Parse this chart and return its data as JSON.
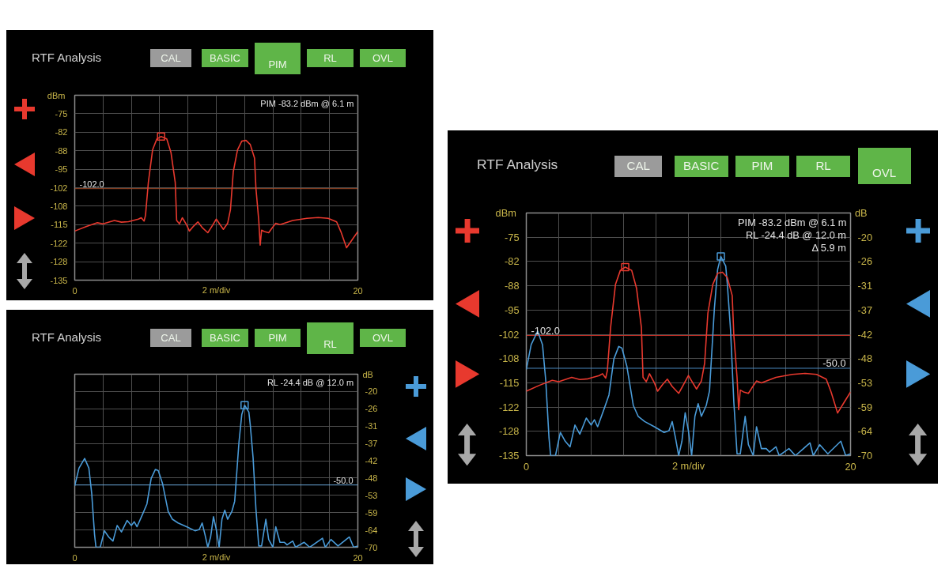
{
  "chart_data": [
    {
      "type": "line",
      "title": "RTF Analysis",
      "xlabel": "2 m/div",
      "ylabel": "dBm",
      "xlim": [
        0,
        20
      ],
      "xticks": [
        0,
        {
          "value": 2,
          "label": null
        },
        {
          "value": 4,
          "label": null
        },
        {
          "value": 6,
          "label": null
        },
        {
          "value": 8,
          "label": null
        },
        {
          "value": 10,
          "label": null
        },
        {
          "value": 12,
          "label": null
        },
        {
          "value": 14,
          "label": null
        },
        {
          "value": 16,
          "label": null
        },
        {
          "value": 18,
          "label": null
        },
        20
      ],
      "ylim": [
        -135,
        -68.33
      ],
      "yticks": [
        -135,
        {
          "value": -128.33,
          "label": "-128"
        },
        {
          "value": -121.67,
          "label": "-122"
        },
        -115,
        {
          "value": -108.33,
          "label": "-108"
        },
        {
          "value": -101.67,
          "label": "-102"
        },
        -95,
        {
          "value": -88.33,
          "label": "-88"
        },
        {
          "value": -81.67,
          "label": "-82"
        },
        -75
      ],
      "grid": true,
      "ref_lines": [
        {
          "axis": "y",
          "value": -102,
          "label": "-102.0",
          "color": "#9c4a2a"
        }
      ],
      "annotations": [
        "PIM -83.2 dBm @ 6.1 m",
        "CAL",
        "BASIC",
        "PIM",
        "RL",
        "OVL"
      ],
      "series": [
        {
          "color": "#e8392e",
          "x": [
            0,
            0.8,
            1.6,
            2.0,
            2.8,
            3.3,
            3.8,
            4.5,
            4.7,
            4.9,
            5.0,
            5.2,
            5.5,
            5.8,
            6.1,
            6.5,
            6.8,
            7.1,
            7.2,
            7.4,
            7.6,
            7.9,
            8.1,
            8.4,
            8.7,
            9.0,
            9.4,
            9.7,
            10.0,
            10.2,
            10.5,
            10.8,
            11.0,
            11.2,
            11.5,
            11.8,
            12.1,
            12.4,
            12.7,
            12.8,
            13.0,
            13.1,
            13.2,
            13.4,
            13.7,
            13.9,
            14.2,
            14.5,
            15.4,
            16.4,
            17.2,
            17.9,
            18.5,
            18.8,
            19.2,
            19.6,
            20
          ],
          "values": [
            -117.3,
            -115.7,
            -114.3,
            -114.7,
            -113.5,
            -114.1,
            -113.9,
            -113.0,
            -112.5,
            -113.7,
            -111.6,
            -99.8,
            -88.0,
            -84.1,
            -83.2,
            -84.1,
            -89.0,
            -99.8,
            -113.5,
            -114.7,
            -112.5,
            -115.0,
            -117.3,
            -115.5,
            -114.0,
            -116.0,
            -117.9,
            -115.5,
            -113.0,
            -114.5,
            -116.7,
            -114.5,
            -109.6,
            -95.9,
            -88.0,
            -84.9,
            -84.6,
            -86.1,
            -91.0,
            -101.8,
            -113.5,
            -122.4,
            -117.0,
            -117.5,
            -117.9,
            -116.5,
            -114.5,
            -115.0,
            -113.5,
            -112.7,
            -112.4,
            -112.7,
            -114.0,
            -117.5,
            -123.3,
            -120.4,
            -117.5
          ]
        },
        {
          "type": "scatter",
          "marker": "square",
          "color": "#e8392e",
          "x": [
            6.1
          ],
          "values": [
            -83.2
          ]
        }
      ]
    },
    {
      "type": "line",
      "title": "RTF Analysis",
      "xlabel": "2 m/div",
      "ylabel": "dBm",
      "y2label": "dB",
      "xlim": [
        0,
        20
      ],
      "xticks": [
        0,
        {
          "value": 2,
          "label": null
        },
        {
          "value": 4,
          "label": null
        },
        {
          "value": 6,
          "label": null
        },
        {
          "value": 8,
          "label": null
        },
        {
          "value": 10,
          "label": null
        },
        {
          "value": 12,
          "label": null
        },
        {
          "value": 14,
          "label": null
        },
        {
          "value": 16,
          "label": null
        },
        {
          "value": 18,
          "label": null
        },
        20
      ],
      "ylim": [
        -135,
        -68.33
      ],
      "yticks": [
        -135,
        {
          "value": -128.33,
          "label": "-128"
        },
        {
          "value": -121.67,
          "label": "-122"
        },
        -115,
        {
          "value": -108.33,
          "label": "-108"
        },
        {
          "value": -101.67,
          "label": "-102"
        },
        -95,
        {
          "value": -88.33,
          "label": "-88"
        },
        {
          "value": -81.67,
          "label": "-82"
        },
        -75
      ],
      "y2lim": [
        -70,
        -14.44
      ],
      "y2ticks": [
        -70,
        {
          "value": -64.44,
          "label": "-64"
        },
        {
          "value": -58.89,
          "label": "-59"
        },
        {
          "value": -53.33,
          "label": "-53"
        },
        {
          "value": -47.78,
          "label": "-48"
        },
        {
          "value": -42.22,
          "label": "-42"
        },
        {
          "value": -36.67,
          "label": "-37"
        },
        {
          "value": -31.11,
          "label": "-31"
        },
        {
          "value": -25.56,
          "label": "-26"
        },
        -20
      ],
      "grid": true,
      "ref_lines": [
        {
          "axis": "y",
          "value": -102,
          "label": "-102.0",
          "color": "#c83228"
        },
        {
          "axis": "y2",
          "value": -50,
          "label": "-50.0",
          "color": "#4a88c0"
        }
      ],
      "annotations": [
        "PIM -83.2 dBm @ 6.1 m",
        "RL -24.4 dB @ 12.0 m",
        "Δ 5.9 m",
        "CAL",
        "BASIC",
        "PIM",
        "RL",
        "OVL"
      ],
      "series": [
        {
          "color": "#4a9bd8",
          "axis": "y2",
          "x": [
            0,
            0.3,
            0.7,
            1.0,
            1.2,
            1.4,
            1.5,
            1.8,
            2.1,
            2.4,
            2.7,
            3.0,
            3.3,
            3.7,
            4.0,
            4.2,
            4.4,
            4.8,
            5.1,
            5.4,
            5.7,
            5.9,
            6.2,
            6.6,
            6.9,
            7.3,
            7.9,
            8.5,
            8.8,
            9.0,
            9.2,
            9.4,
            9.6,
            9.8,
            10.0,
            10.2,
            10.4,
            10.6,
            10.8,
            11.1,
            11.3,
            11.6,
            11.8,
            12.0,
            12.3,
            12.4,
            12.6,
            12.8,
            13.0,
            13.2,
            13.5,
            13.7,
            14.0,
            14.2,
            14.5,
            14.8,
            15.0,
            15.4,
            15.6,
            16.2,
            16.6,
            17.5,
            17.7,
            18.1,
            18.6,
            19.4,
            19.7,
            20
          ],
          "values": [
            -50.3,
            -44.6,
            -41.5,
            -44.6,
            -52.8,
            -65.9,
            -70,
            -70,
            -64.7,
            -66.7,
            -68.0,
            -63.0,
            -65.1,
            -61.4,
            -63.0,
            -61.8,
            -63.4,
            -59.3,
            -56.1,
            -47.9,
            -45.0,
            -45.4,
            -49.5,
            -58.5,
            -61.0,
            -62.2,
            -63.4,
            -64.7,
            -64.3,
            -62.2,
            -65.9,
            -70,
            -66.7,
            -60.2,
            -64.3,
            -70,
            -61.0,
            -58.1,
            -61.0,
            -58.5,
            -55.2,
            -36.4,
            -27.4,
            -24.4,
            -26.6,
            -30.7,
            -41.3,
            -57.7,
            -69.6,
            -69.6,
            -61.0,
            -67.5,
            -70,
            -63.4,
            -68.4,
            -68.4,
            -69.2,
            -68.0,
            -70,
            -68.4,
            -70,
            -67.1,
            -70,
            -67.5,
            -69.6,
            -66.7,
            -70,
            -69.6
          ]
        },
        {
          "color": "#e8392e",
          "axis": "y",
          "x": [
            0,
            0.8,
            1.6,
            2.0,
            2.8,
            3.3,
            3.8,
            4.5,
            4.7,
            4.9,
            5.0,
            5.2,
            5.5,
            5.8,
            6.1,
            6.5,
            6.8,
            7.1,
            7.2,
            7.4,
            7.6,
            7.9,
            8.1,
            8.4,
            8.7,
            9.0,
            9.4,
            9.7,
            10.0,
            10.2,
            10.5,
            10.8,
            11.0,
            11.2,
            11.5,
            11.8,
            12.1,
            12.4,
            12.7,
            12.8,
            13.0,
            13.1,
            13.2,
            13.4,
            13.7,
            13.9,
            14.2,
            14.5,
            15.4,
            16.4,
            17.2,
            17.9,
            18.5,
            18.8,
            19.2,
            19.6,
            20
          ],
          "values": [
            -117.3,
            -115.7,
            -114.3,
            -114.7,
            -113.5,
            -114.1,
            -113.9,
            -113.0,
            -112.5,
            -113.7,
            -111.6,
            -99.8,
            -88.0,
            -84.1,
            -83.2,
            -84.1,
            -89.0,
            -99.8,
            -113.5,
            -114.7,
            -112.5,
            -115.0,
            -117.3,
            -115.5,
            -114.0,
            -116.0,
            -117.9,
            -115.5,
            -113.0,
            -114.5,
            -116.7,
            -114.5,
            -109.6,
            -95.9,
            -88.0,
            -84.9,
            -84.6,
            -86.1,
            -91.0,
            -101.8,
            -113.5,
            -122.4,
            -117.0,
            -117.5,
            -117.9,
            -116.5,
            -114.5,
            -115.0,
            -113.5,
            -112.7,
            -112.4,
            -112.7,
            -114.0,
            -117.5,
            -123.3,
            -120.4,
            -117.5
          ]
        },
        {
          "type": "scatter",
          "marker": "square",
          "color": "#e8392e",
          "axis": "y",
          "x": [
            6.1
          ],
          "values": [
            -83.2
          ]
        },
        {
          "type": "scatter",
          "marker": "square",
          "color": "#4a9bd8",
          "axis": "y2",
          "x": [
            12.0
          ],
          "values": [
            -24.4
          ]
        }
      ]
    },
    {
      "type": "line",
      "title": "RTF Analysis",
      "xlabel": "2 m/div",
      "y2label": "dB",
      "xlim": [
        0,
        20
      ],
      "xticks": [
        0,
        {
          "value": 2,
          "label": null
        },
        {
          "value": 4,
          "label": null
        },
        {
          "value": 6,
          "label": null
        },
        {
          "value": 8,
          "label": null
        },
        {
          "value": 10,
          "label": null
        },
        {
          "value": 12,
          "label": null
        },
        {
          "value": 14,
          "label": null
        },
        {
          "value": 16,
          "label": null
        },
        {
          "value": 18,
          "label": null
        },
        20
      ],
      "y2lim": [
        -70,
        -14.44
      ],
      "y2ticks": [
        -70,
        {
          "value": -64.44,
          "label": "-64"
        },
        {
          "value": -58.89,
          "label": "-59"
        },
        {
          "value": -53.33,
          "label": "-53"
        },
        {
          "value": -47.78,
          "label": "-48"
        },
        {
          "value": -42.22,
          "label": "-42"
        },
        {
          "value": -36.67,
          "label": "-37"
        },
        {
          "value": -31.11,
          "label": "-31"
        },
        {
          "value": -25.56,
          "label": "-26"
        },
        -20
      ],
      "grid": true,
      "ref_lines": [
        {
          "axis": "y2",
          "value": -50,
          "label": "-50.0",
          "color": "#6aa8d8"
        }
      ],
      "annotations": [
        "RL -24.4 dB @ 12.0 m",
        "CAL",
        "BASIC",
        "PIM",
        "RL",
        "OVL"
      ],
      "series": [
        {
          "color": "#4a9bd8",
          "axis": "y2",
          "x": [
            0,
            0.3,
            0.7,
            1.0,
            1.2,
            1.4,
            1.5,
            1.8,
            2.1,
            2.4,
            2.7,
            3.0,
            3.3,
            3.7,
            4.0,
            4.2,
            4.4,
            4.8,
            5.1,
            5.4,
            5.7,
            5.9,
            6.2,
            6.6,
            6.9,
            7.3,
            7.9,
            8.5,
            8.8,
            9.0,
            9.2,
            9.4,
            9.6,
            9.8,
            10.0,
            10.2,
            10.4,
            10.6,
            10.8,
            11.1,
            11.3,
            11.6,
            11.8,
            12.0,
            12.3,
            12.4,
            12.6,
            12.8,
            13.0,
            13.2,
            13.5,
            13.7,
            14.0,
            14.2,
            14.5,
            14.8,
            15.0,
            15.4,
            15.6,
            16.2,
            16.6,
            17.5,
            17.7,
            18.1,
            18.6,
            19.4,
            19.7,
            20
          ],
          "values": [
            -50.3,
            -44.6,
            -41.5,
            -44.6,
            -52.8,
            -65.9,
            -70,
            -70,
            -64.7,
            -66.7,
            -68.0,
            -63.0,
            -65.1,
            -61.4,
            -63.0,
            -61.8,
            -63.4,
            -59.3,
            -56.1,
            -47.9,
            -45.0,
            -45.4,
            -49.5,
            -58.5,
            -61.0,
            -62.2,
            -63.4,
            -64.7,
            -64.3,
            -62.2,
            -65.9,
            -70,
            -66.7,
            -60.2,
            -64.3,
            -70,
            -61.0,
            -58.1,
            -61.0,
            -58.5,
            -55.2,
            -36.4,
            -27.4,
            -24.4,
            -26.6,
            -30.7,
            -41.3,
            -57.7,
            -69.6,
            -69.6,
            -61.0,
            -67.5,
            -70,
            -63.4,
            -68.4,
            -68.4,
            -69.2,
            -68.0,
            -70,
            -68.4,
            -70,
            -67.1,
            -70,
            -67.5,
            -69.6,
            -66.7,
            -70,
            -69.6
          ]
        },
        {
          "type": "scatter",
          "marker": "square",
          "color": "#4a9bd8",
          "axis": "y2",
          "x": [
            12.0
          ],
          "values": [
            -24.4
          ]
        }
      ]
    }
  ]
}
